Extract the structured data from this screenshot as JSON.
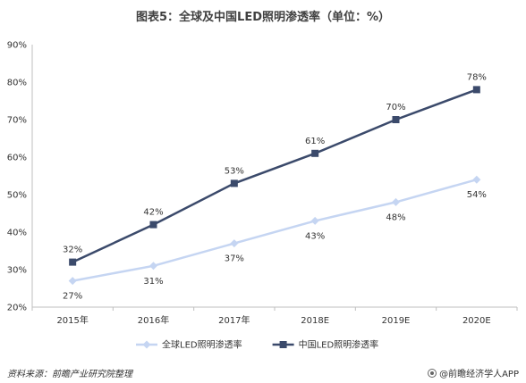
{
  "title": "图表5：全球及中国LED照明渗透率（单位：%）",
  "source": "资料来源：前瞻产业研究院整理",
  "credit": "@前瞻经济学人APP",
  "chart_data": {
    "type": "line",
    "title": "图表5：全球及中国LED照明渗透率（单位：%）",
    "categories": [
      "2015年",
      "2016年",
      "2017年",
      "2018E",
      "2019E",
      "2020E"
    ],
    "y_ticks": [
      "20%",
      "30%",
      "40%",
      "50%",
      "60%",
      "70%",
      "80%",
      "90%"
    ],
    "ylim": [
      20,
      90
    ],
    "grid": false,
    "legend_position": "bottom",
    "series": [
      {
        "name": "全球LED照明渗透率",
        "values": [
          27,
          31,
          37,
          43,
          48,
          54
        ],
        "labels": [
          "27%",
          "31%",
          "37%",
          "43%",
          "48%",
          "54%"
        ],
        "color": "#c5d5f2",
        "marker": "diamond",
        "label_position": "below"
      },
      {
        "name": "中国LED照明渗透率",
        "values": [
          32,
          42,
          53,
          61,
          70,
          78
        ],
        "labels": [
          "32%",
          "42%",
          "53%",
          "61%",
          "70%",
          "78%"
        ],
        "color": "#3b4a6b",
        "marker": "square",
        "label_position": "above"
      }
    ]
  }
}
